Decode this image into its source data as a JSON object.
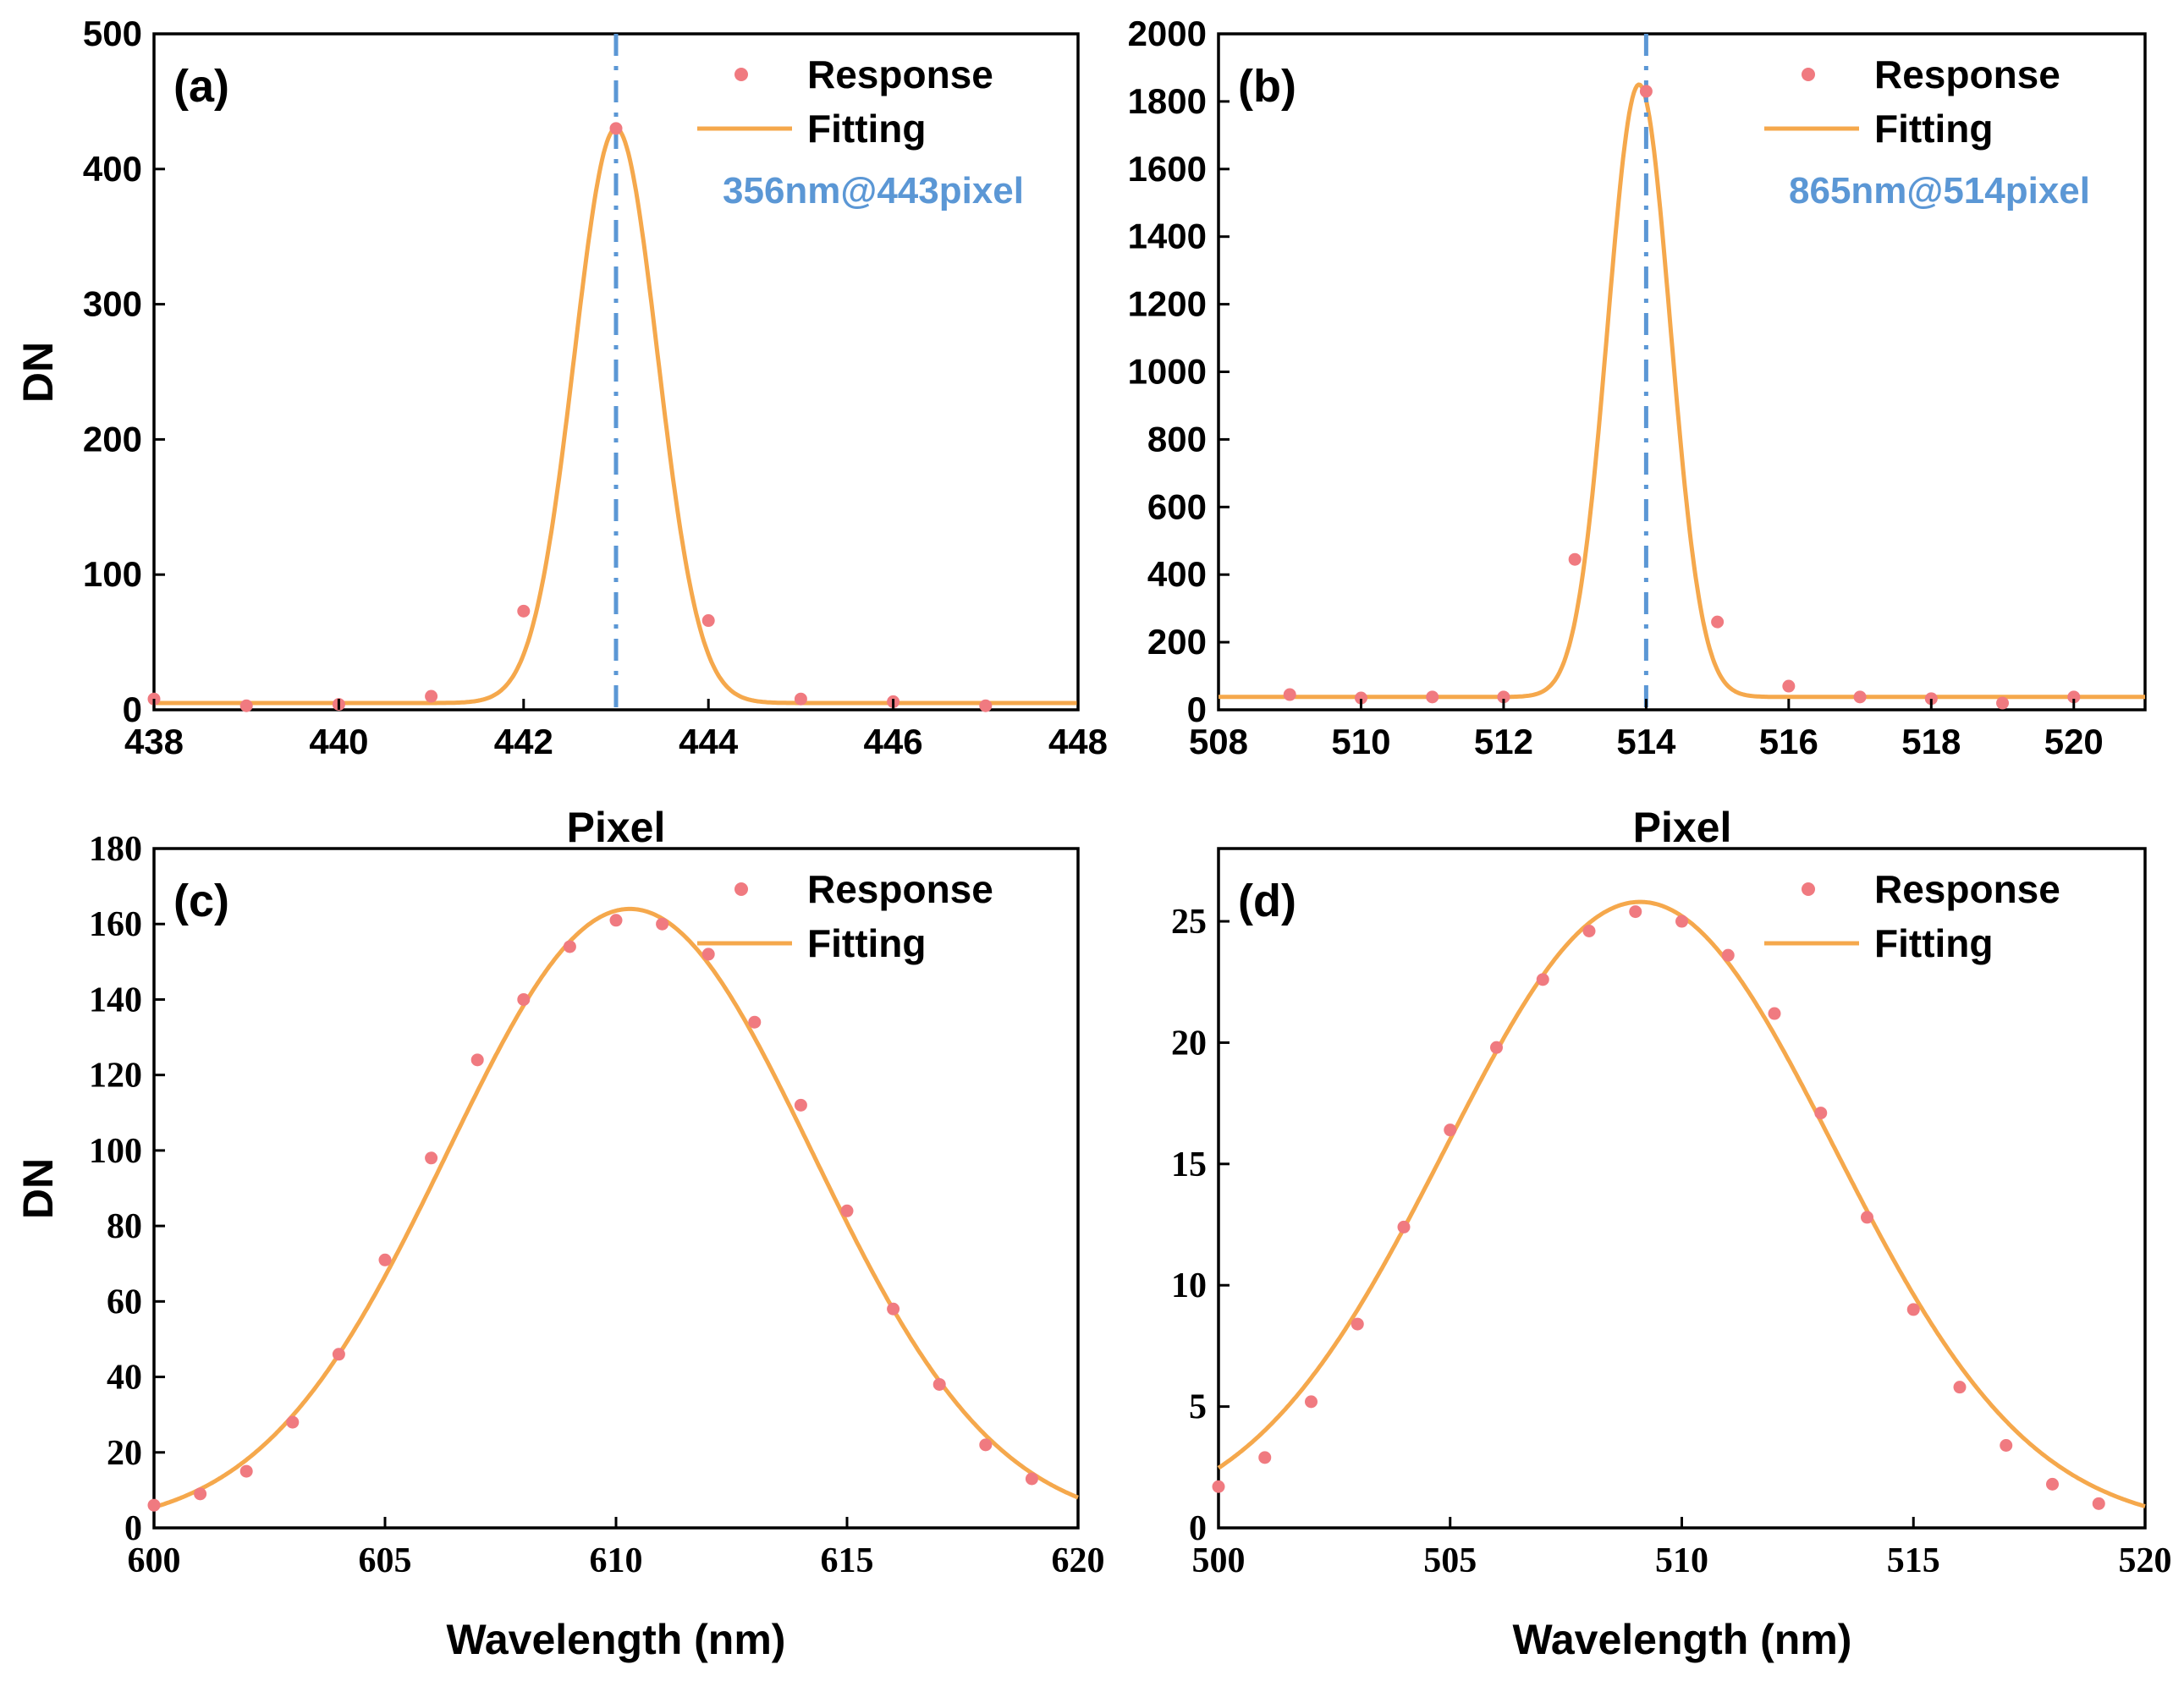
{
  "chart_data": [
    {
      "id": "a",
      "type": "scatter",
      "panel_label": "(a)",
      "xlabel": "Pixel",
      "ylabel": "DN",
      "xlim": [
        438,
        448
      ],
      "ylim": [
        0,
        500
      ],
      "xticks": [
        438,
        440,
        442,
        444,
        446,
        448
      ],
      "yticks": [
        0,
        100,
        200,
        300,
        400,
        500
      ],
      "tick_font": "sans",
      "legend": {
        "position": "top-right",
        "labels": [
          "Response",
          "Fitting"
        ]
      },
      "annotation": "356nm@443pixel",
      "vline": 443,
      "series": [
        {
          "name": "Response",
          "x": [
            438,
            439,
            440,
            441,
            442,
            443,
            444,
            445,
            446,
            447
          ],
          "y": [
            8,
            3,
            4,
            10,
            73,
            430,
            66,
            8,
            6,
            3
          ]
        },
        {
          "name": "Fitting",
          "model": "gaussian",
          "amplitude": 425,
          "center": 443,
          "sigma": 0.45,
          "offset": 5
        }
      ]
    },
    {
      "id": "b",
      "type": "scatter",
      "panel_label": "(b)",
      "xlabel": "Pixel",
      "ylabel": "",
      "xlim": [
        508,
        521
      ],
      "ylim": [
        0,
        2000
      ],
      "xticks": [
        508,
        510,
        512,
        514,
        516,
        518,
        520
      ],
      "yticks": [
        0,
        200,
        400,
        600,
        800,
        1000,
        1200,
        1400,
        1600,
        1800,
        2000
      ],
      "tick_font": "sans",
      "legend": {
        "position": "top-right",
        "labels": [
          "Response",
          "Fitting"
        ]
      },
      "annotation": "865nm@514pixel",
      "vline": 514,
      "series": [
        {
          "name": "Response",
          "x": [
            509,
            510,
            511,
            512,
            513,
            514,
            515,
            516,
            517,
            518,
            519,
            520
          ],
          "y": [
            45,
            35,
            38,
            38,
            445,
            1830,
            260,
            70,
            38,
            33,
            20,
            38
          ]
        },
        {
          "name": "Fitting",
          "model": "gaussian",
          "amplitude": 1812,
          "center": 513.9,
          "sigma": 0.44,
          "offset": 38
        }
      ]
    },
    {
      "id": "c",
      "type": "scatter",
      "panel_label": "(c)",
      "xlabel": "Wavelength (nm)",
      "ylabel": "DN",
      "xlim": [
        600,
        620
      ],
      "ylim": [
        0,
        180
      ],
      "xticks": [
        600,
        605,
        610,
        615,
        620
      ],
      "yticks": [
        0,
        20,
        40,
        60,
        80,
        100,
        120,
        140,
        160,
        180
      ],
      "tick_font": "serif",
      "legend": {
        "position": "top-right",
        "labels": [
          "Response",
          "Fitting"
        ]
      },
      "series": [
        {
          "name": "Response",
          "x": [
            600,
            601,
            602,
            603,
            604,
            605,
            606,
            607,
            608,
            609,
            610,
            611,
            612,
            613,
            614,
            615,
            616,
            617,
            618,
            619
          ],
          "y": [
            6,
            9,
            15,
            28,
            46,
            71,
            98,
            124,
            140,
            154,
            161,
            160,
            152,
            134,
            112,
            84,
            58,
            38,
            22,
            13
          ]
        },
        {
          "name": "Fitting",
          "model": "gaussian",
          "amplitude": 164,
          "center": 610.3,
          "sigma": 3.95,
          "offset": 0
        }
      ]
    },
    {
      "id": "d",
      "type": "scatter",
      "panel_label": "(d)",
      "xlabel": "Wavelength (nm)",
      "ylabel": "",
      "xlim": [
        500,
        520
      ],
      "ylim": [
        0,
        28
      ],
      "xticks": [
        500,
        505,
        510,
        515,
        520
      ],
      "yticks": [
        0,
        5,
        10,
        15,
        20,
        25
      ],
      "tick_font": "serif",
      "legend": {
        "position": "top-right",
        "labels": [
          "Response",
          "Fitting"
        ]
      },
      "series": [
        {
          "name": "Response",
          "x": [
            500,
            501,
            502,
            503,
            504,
            505,
            506,
            507,
            508,
            509,
            510,
            511,
            512,
            513,
            514,
            515,
            516,
            517,
            518,
            519
          ],
          "y": [
            1.7,
            2.9,
            5.2,
            8.4,
            12.4,
            16.4,
            19.8,
            22.6,
            24.6,
            25.4,
            25.0,
            23.6,
            21.2,
            17.1,
            12.8,
            9.0,
            5.8,
            3.4,
            1.8,
            1.0
          ]
        },
        {
          "name": "Fitting",
          "model": "gaussian",
          "amplitude": 25.8,
          "center": 509.1,
          "sigma": 4.2,
          "offset": 0
        }
      ]
    }
  ],
  "colors": {
    "response": "#f07a80",
    "fitting": "#f5a84c",
    "vline": "#5b97d5",
    "annotation": "#5b97d5",
    "axis": "#000000"
  }
}
